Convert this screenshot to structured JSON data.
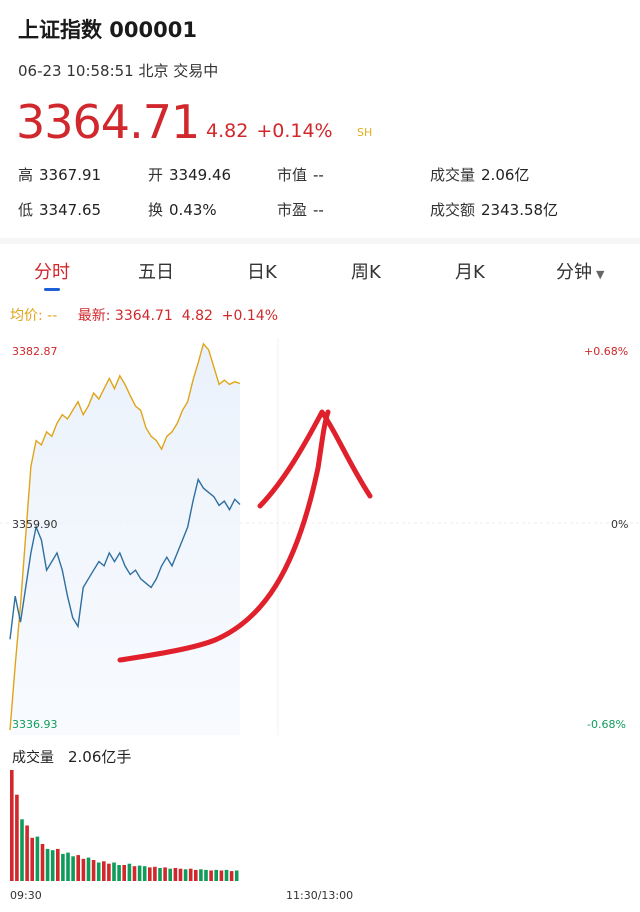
{
  "header": {
    "title": "上证指数 000001",
    "subtitle": "06-23 10:58:51 北京 交易中",
    "price": "3364.71",
    "change": "4.82",
    "change_pct": "+0.14%",
    "market": "SH"
  },
  "stats": {
    "high_label": "高",
    "high": "3367.91",
    "open_label": "开",
    "open": "3349.46",
    "mktcap_label": "市值",
    "mktcap": "--",
    "vol_label": "成交量",
    "vol": "2.06亿",
    "low_label": "低",
    "low": "3347.65",
    "turnover_label": "换",
    "turnover": "0.43%",
    "pe_label": "市盈",
    "pe": "--",
    "amount_label": "成交额",
    "amount": "2343.58亿"
  },
  "tabs": [
    "分时",
    "五日",
    "日K",
    "周K",
    "月K",
    "分钟"
  ],
  "active_tab": 0,
  "legend": {
    "avg_label": "均价:",
    "avg_value": "--",
    "latest_label": "最新:",
    "latest_value": "3364.71",
    "latest_change": "4.82",
    "latest_pct": "+0.14%"
  },
  "axis": {
    "y_top": "3382.87",
    "y_mid": "3359.90",
    "y_bot": "3336.93",
    "pct_top": "+0.68%",
    "pct_mid": "0%",
    "pct_bot": "-0.68%",
    "time_start": "09:30",
    "time_mid": "11:30/13:00"
  },
  "volume": {
    "label": "成交量",
    "value": "2.06亿手"
  },
  "colors": {
    "up": "#d0282c",
    "down": "#0f9c5a",
    "price_line": "#e0a418",
    "avg_line": "#2f6f9f",
    "annotation": "#e0202a"
  },
  "chart_data": {
    "type": "line",
    "ylim": [
      3336.93,
      3382.87
    ],
    "series": [
      {
        "values": [
          3337.5,
          3345.0,
          3352.0,
          3360.0,
          3368.0,
          3371.0,
          3370.5,
          3372.0,
          3371.5,
          3373.0,
          3374.0,
          3373.5,
          3374.5,
          3375.5,
          3374.0,
          3375.0,
          3376.5,
          3375.8,
          3377.0,
          3378.2,
          3377.0,
          3378.5,
          3377.5,
          3376.2,
          3375.0,
          3374.5,
          3372.5,
          3371.5,
          3371.0,
          3370.0,
          3371.5,
          3372.0,
          3373.0,
          3374.5,
          3375.5,
          3378.0,
          3380.0,
          3382.2,
          3381.5,
          3379.5,
          3377.5,
          3378.0,
          3377.5,
          3377.8,
          3377.6
        ]
      },
      {
        "values": [
          3348.0,
          3353.0,
          3350.0,
          3354.0,
          3358.0,
          3361.0,
          3359.5,
          3356.0,
          3357.0,
          3358.0,
          3356.0,
          3353.0,
          3350.5,
          3349.5,
          3354.0,
          3355.0,
          3356.0,
          3357.0,
          3356.5,
          3358.0,
          3357.0,
          3358.0,
          3356.5,
          3355.5,
          3356.0,
          3355.0,
          3354.5,
          3354.0,
          3355.0,
          3356.5,
          3357.5,
          3356.5,
          3358.0,
          3359.5,
          3361.0,
          3364.0,
          3366.5,
          3365.5,
          3365.0,
          3364.5,
          3363.5,
          3364.0,
          3363.0,
          3364.2,
          3363.6
        ]
      }
    ],
    "volume_values": [
      9,
      7,
      5,
      4.5,
      3.5,
      3.6,
      3,
      2.6,
      2.5,
      2.6,
      2.2,
      2.3,
      2,
      2.1,
      1.8,
      1.9,
      1.7,
      1.5,
      1.6,
      1.4,
      1.5,
      1.3,
      1.3,
      1.4,
      1.2,
      1.25,
      1.2,
      1.1,
      1.15,
      1.05,
      1.1,
      1,
      1.05,
      1,
      0.95,
      1,
      0.9,
      0.95,
      0.9,
      0.85,
      0.9,
      0.85,
      0.9,
      0.8,
      0.85
    ],
    "volume_up": [
      1,
      1,
      0,
      1,
      1,
      0,
      1,
      0,
      0,
      1,
      0,
      0,
      0,
      1,
      1,
      0,
      1,
      0,
      1,
      1,
      0,
      0,
      1,
      0,
      1,
      0,
      0,
      1,
      1,
      0,
      1,
      0,
      1,
      1,
      0,
      1,
      1,
      0,
      0,
      1,
      0,
      1,
      0,
      1,
      0
    ]
  }
}
